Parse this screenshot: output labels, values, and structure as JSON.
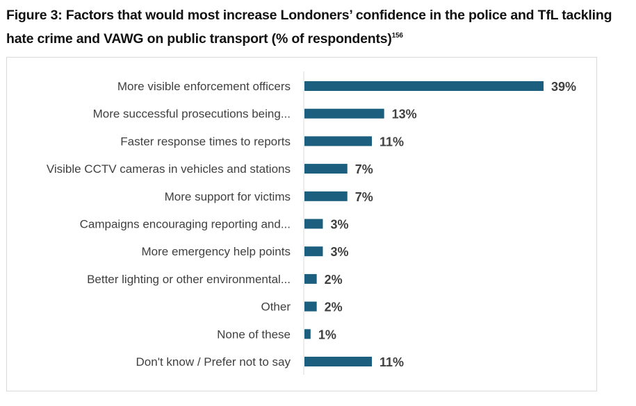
{
  "title": "Figure 3: Factors that would most increase Londoners’ confidence in the police and TfL tackling hate crime and VAWG on public transport (% of respondents)",
  "footnote": "156",
  "chart_data": {
    "type": "bar",
    "orientation": "horizontal",
    "categories": [
      "More visible enforcement officers",
      "More successful prosecutions being...",
      "Faster response times to reports",
      "Visible CCTV cameras in vehicles and stations",
      "More support for victims",
      "Campaigns encouraging reporting and...",
      "More emergency help points",
      "Better lighting or other environmental...",
      "Other",
      "None of these",
      "Don't know / Prefer not to say"
    ],
    "values": [
      39,
      13,
      11,
      7,
      7,
      3,
      3,
      2,
      2,
      1,
      11
    ],
    "unit": "%",
    "bar_color": "#1b5e7e",
    "grid": false,
    "legend": "none"
  }
}
